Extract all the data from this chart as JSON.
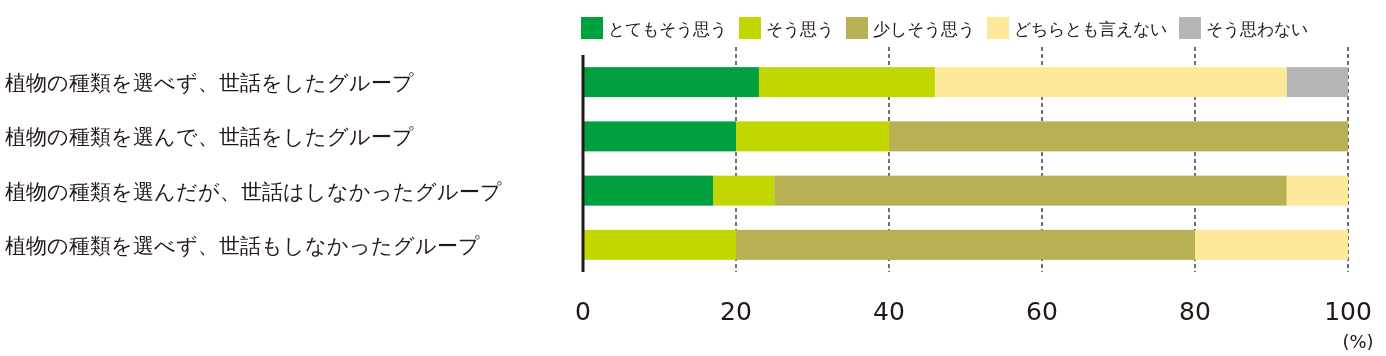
{
  "chart_data": {
    "type": "bar",
    "orientation": "horizontal",
    "stacked": true,
    "categories": [
      "植物の種類を選べず、世話をしたグループ",
      "植物の種類を選んで、世話をしたグループ",
      "植物の種類を選んだが、世話はしなかったグループ",
      "植物の種類を選べず、世話もしなかったグループ"
    ],
    "series": [
      {
        "name": "とてもそう思う",
        "color": "#00a040",
        "values": [
          23,
          20,
          17,
          null
        ]
      },
      {
        "name": "そう思う",
        "color": "#c2d600",
        "values": [
          23,
          20,
          8,
          20
        ]
      },
      {
        "name": "少しそう思う",
        "color": "#b8b154",
        "values": [
          null,
          60,
          67,
          60
        ]
      },
      {
        "name": "どちらとも言えない",
        "color": "#fee89a",
        "values": [
          46,
          null,
          8,
          20
        ]
      },
      {
        "name": "そう思わない",
        "color": "#b5b5b5",
        "values": [
          8,
          null,
          null,
          null
        ]
      }
    ],
    "xlim": [
      0,
      100
    ],
    "xticks": [
      0,
      20,
      40,
      60,
      80,
      100
    ],
    "grid": "x",
    "line_style": "dashed",
    "legend": "top",
    "annotations": [
      "(%)"
    ]
  }
}
